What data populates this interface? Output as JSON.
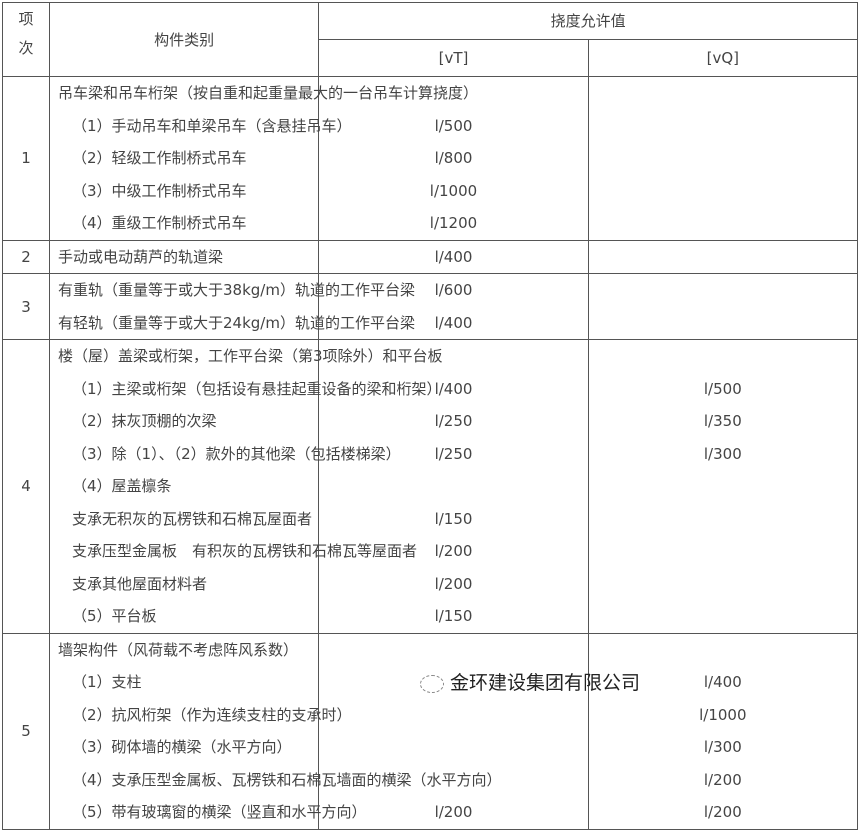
{
  "header": {
    "col_index": "项次",
    "col_item": "构件类别",
    "col_limit": "挠度允许值",
    "col_vt": "[vT]",
    "col_vq": "[vQ]"
  },
  "groups": [
    {
      "index": "1",
      "rows": [
        {
          "text": "吊车梁和吊车桁架（按自重和起重量最大的一台吊车计算挠度）",
          "indent": false,
          "vt": "",
          "vq": ""
        },
        {
          "text": "（1）手动吊车和单梁吊车（含悬挂吊车）",
          "indent": true,
          "vt": "l/500",
          "vq": ""
        },
        {
          "text": "（2）轻级工作制桥式吊车",
          "indent": true,
          "vt": "l/800",
          "vq": ""
        },
        {
          "text": "（3）中级工作制桥式吊车",
          "indent": true,
          "vt": "l/1000",
          "vq": ""
        },
        {
          "text": "（4）重级工作制桥式吊车",
          "indent": true,
          "vt": "l/1200",
          "vq": ""
        }
      ]
    },
    {
      "index": "2",
      "rows": [
        {
          "text": "手动或电动葫芦的轨道梁",
          "indent": false,
          "vt": "l/400",
          "vq": ""
        }
      ]
    },
    {
      "index": "3",
      "rows": [
        {
          "text": "有重轨（重量等于或大于38kg/m）轨道的工作平台梁",
          "indent": false,
          "vt": "l/600",
          "vq": ""
        },
        {
          "text": "有轻轨（重量等于或大于24kg/m）轨道的工作平台梁",
          "indent": false,
          "vt": "l/400",
          "vq": ""
        }
      ]
    },
    {
      "index": "4",
      "rows": [
        {
          "text": "楼（屋）盖梁或桁架，工作平台梁（第3项除外）和平台板",
          "indent": false,
          "vt": "",
          "vq": ""
        },
        {
          "text": "（1）主梁或桁架（包括设有悬挂起重设备的梁和桁架）",
          "indent": true,
          "vt": "l/400",
          "vq": "l/500"
        },
        {
          "text": "（2）抹灰顶棚的次梁",
          "indent": true,
          "vt": "l/250",
          "vq": "l/350"
        },
        {
          "text": "（3）除（1）、（2）款外的其他梁（包括楼梯梁）",
          "indent": true,
          "vt": "l/250",
          "vq": "l/300"
        },
        {
          "text": "（4）屋盖檩条",
          "indent": true,
          "vt": "",
          "vq": ""
        },
        {
          "text": "支承无积灰的瓦楞铁和石棉瓦屋面者",
          "indent": true,
          "vt": "l/150",
          "vq": ""
        },
        {
          "text": "支承压型金属板　有积灰的瓦楞铁和石棉瓦等屋面者",
          "indent": true,
          "vt": "l/200",
          "vq": ""
        },
        {
          "text": "支承其他屋面材料者",
          "indent": true,
          "vt": "l/200",
          "vq": ""
        },
        {
          "text": "（5）平台板",
          "indent": true,
          "vt": "l/150",
          "vq": ""
        }
      ]
    },
    {
      "index": "5",
      "rows": [
        {
          "text": "墙架构件（风荷载不考虑阵风系数）",
          "indent": false,
          "vt": "",
          "vq": ""
        },
        {
          "text": "（1）支柱",
          "indent": true,
          "vt": "",
          "vq": "l/400"
        },
        {
          "text": "（2）抗风桁架（作为连续支柱的支承时）",
          "indent": true,
          "vt": "",
          "vq": "l/1000"
        },
        {
          "text": "（3）砌体墙的横梁（水平方向）",
          "indent": true,
          "vt": "",
          "vq": "l/300"
        },
        {
          "text": "（4）支承压型金属板、瓦楞铁和石棉瓦墙面的横梁（水平方向）",
          "indent": true,
          "vt": "",
          "vq": "l/200"
        },
        {
          "text": "（5）带有玻璃窗的横梁（竖直和水平方向）",
          "indent": true,
          "vt": "l/200",
          "vq": "l/200"
        }
      ]
    }
  ],
  "watermark": "金环建设集团有限公司"
}
